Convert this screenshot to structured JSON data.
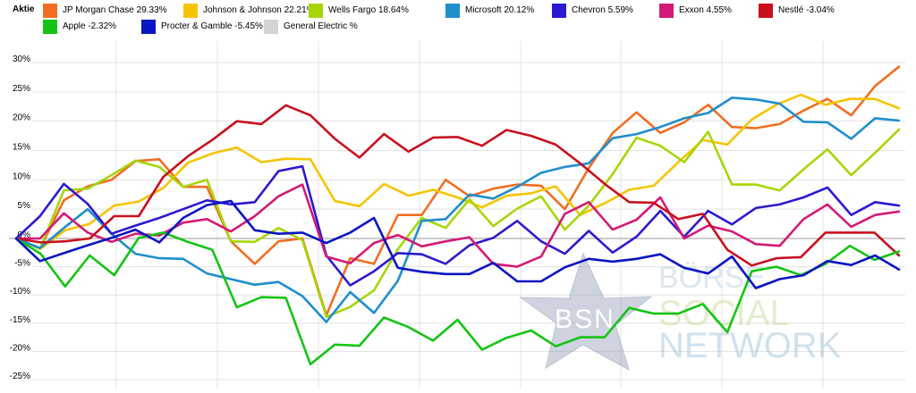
{
  "legend": {
    "title": "Aktie"
  },
  "chart_data": {
    "type": "line",
    "ylim": [
      -25,
      30
    ],
    "y_ticks": [
      30,
      25,
      20,
      15,
      10,
      5,
      0,
      -5,
      -10,
      -15,
      -20,
      -25
    ],
    "y_tick_labels": [
      "30%",
      "25%",
      "20%",
      "15%",
      "10%",
      "5%",
      "0%",
      "-5%",
      "-10%",
      "-15%",
      "-20%",
      "-25%"
    ],
    "grid": true,
    "legend_position": "top",
    "series": [
      {
        "name": "JP Morgan Chase",
        "value_label": "29.33%",
        "color": "#f26d21",
        "values": [
          0,
          -1.8,
          6.5,
          8.9,
          10,
          13.2,
          13.5,
          8.8,
          8.8,
          -0.5,
          -4.5,
          -0.5,
          0,
          -13.6,
          -3.5,
          -4.5,
          4,
          4,
          10,
          7.2,
          8.5,
          9.2,
          9,
          5,
          12,
          18,
          21.5,
          18,
          19.8,
          22.8,
          19,
          18.8,
          19.5,
          21.8,
          23.8,
          21,
          26,
          29.3
        ]
      },
      {
        "name": "Johnson & Johnson",
        "value_label": "22.21%",
        "color": "#f5c400",
        "values": [
          0,
          -1.8,
          1.4,
          2.5,
          5.6,
          6.3,
          8.6,
          12.9,
          14.5,
          15.5,
          13,
          13.6,
          13.5,
          6.4,
          5.5,
          9.3,
          7.3,
          8.3,
          7,
          5.3,
          7.3,
          7.7,
          8.9,
          4,
          6,
          8.3,
          9,
          13,
          16.8,
          16,
          20.3,
          22.8,
          24.5,
          22.8,
          23.8,
          23.8,
          22.2
        ]
      },
      {
        "name": "Wells Fargo",
        "value_label": "18.64%",
        "color": "#a6d609",
        "values": [
          0,
          -1.8,
          8.2,
          8.5,
          10.8,
          13.3,
          12.2,
          8.8,
          10,
          -0.5,
          -0.6,
          1.8,
          -0.3,
          -13.9,
          -12.1,
          -9.2,
          -1.9,
          3.5,
          1.8,
          6.7,
          2.1,
          5.1,
          7.2,
          1.5,
          5.6,
          11,
          17.2,
          15.8,
          13,
          18.2,
          9.2,
          9.2,
          8.2,
          11.8,
          15.2,
          10.8,
          14.6,
          18.6
        ]
      },
      {
        "name": "Microsoft",
        "value_label": "20.12%",
        "color": "#1f8ecd",
        "values": [
          0,
          -1.7,
          1.8,
          5,
          0.8,
          -2.7,
          -3.5,
          -3.6,
          -6.2,
          -7.2,
          -8.2,
          -7.7,
          -10.2,
          -14.8,
          -9.5,
          -13.2,
          -7.5,
          3,
          3.3,
          7.5,
          6.8,
          8.8,
          11.2,
          12.2,
          12.8,
          17.1,
          17.8,
          19,
          20.5,
          21.4,
          24,
          23.7,
          23,
          19.9,
          19.8,
          17,
          20.5,
          20.1
        ]
      },
      {
        "name": "Chevron",
        "value_label": "5.59%",
        "color": "#2c19cf",
        "values": [
          0,
          3.8,
          9.3,
          5.9,
          0.8,
          2.2,
          3.5,
          5,
          6.5,
          5.8,
          6.2,
          11.5,
          12.3,
          -3,
          -8.3,
          -5.8,
          -2.6,
          -2.8,
          -4.5,
          -1.2,
          0.1,
          3,
          -0.5,
          -2.7,
          1.3,
          -2.5,
          0.3,
          4.7,
          0.3,
          4.7,
          2.4,
          5.2,
          5.8,
          7,
          8.7,
          4,
          6.2,
          5.6
        ]
      },
      {
        "name": "Exxon",
        "value_label": "4.55%",
        "color": "#d41a76",
        "values": [
          0,
          0,
          4.3,
          1,
          -0.6,
          0.8,
          0.5,
          2.7,
          3.3,
          1.2,
          3.8,
          7.2,
          9.2,
          -3.2,
          -4.4,
          -0.8,
          0.6,
          -1.4,
          -0.5,
          0.2,
          -4.5,
          -5,
          -3.2,
          4.2,
          6.2,
          1.5,
          3.2,
          7,
          0,
          2.2,
          1.2,
          -1,
          -1.3,
          3.3,
          5.8,
          2,
          4,
          4.6
        ]
      },
      {
        "name": "Nestlé",
        "value_label": "-3.04%",
        "color": "#c8101e",
        "values": [
          0,
          -0.7,
          -0.5,
          0,
          3.8,
          3.8,
          10.5,
          14,
          16.8,
          20,
          19.5,
          22.7,
          21,
          17,
          13.8,
          17.8,
          14.8,
          17.2,
          17.3,
          15.8,
          18.5,
          17.5,
          16,
          12.8,
          9.3,
          6.2,
          6.1,
          3.3,
          4.2,
          -2,
          -4.8,
          -3.5,
          -3.3,
          1,
          1,
          1,
          -3
        ]
      },
      {
        "name": "Apple",
        "value_label": "-2.32%",
        "color": "#14c414",
        "values": [
          0,
          -2.7,
          -8.5,
          -3,
          -6.5,
          0.1,
          1,
          -0.6,
          -2,
          -12.2,
          -10.4,
          -10.5,
          -22.3,
          -18.8,
          -19,
          -14,
          -15.7,
          -18.1,
          -14.4,
          -19.7,
          -17.6,
          -16.3,
          -19.1,
          -17.5,
          -17.5,
          -12.3,
          -13.3,
          -13.3,
          -11.6,
          -16.6,
          -5.8,
          -5,
          -6.5,
          -4.5,
          -1.3,
          -3.8,
          -2.3
        ]
      },
      {
        "name": "Procter & Gamble",
        "value_label": "-5.45%",
        "color": "#0a14c2",
        "values": [
          0,
          -4,
          -2.6,
          -1.2,
          0.1,
          1.5,
          -0.7,
          3.5,
          5.7,
          6.4,
          1.4,
          0.8,
          1,
          -0.8,
          1,
          3.5,
          -5.2,
          -5.9,
          -6.3,
          -6.3,
          -4.3,
          -7.6,
          -7.6,
          -5.1,
          -3.6,
          -4.1,
          -3.6,
          -2.8,
          -5.2,
          -6.2,
          -3.2,
          -8.8,
          -7.2,
          -6.5,
          -4,
          -4.7,
          -3,
          -5.5
        ]
      },
      {
        "name": "General Electric",
        "value_label": "%",
        "color": "#d4d4d4",
        "values": []
      }
    ]
  },
  "watermark": {
    "star_letters": "BSN",
    "line1": "BÖRSE",
    "line2": "SOCIAL",
    "line3": "NETWORK"
  }
}
